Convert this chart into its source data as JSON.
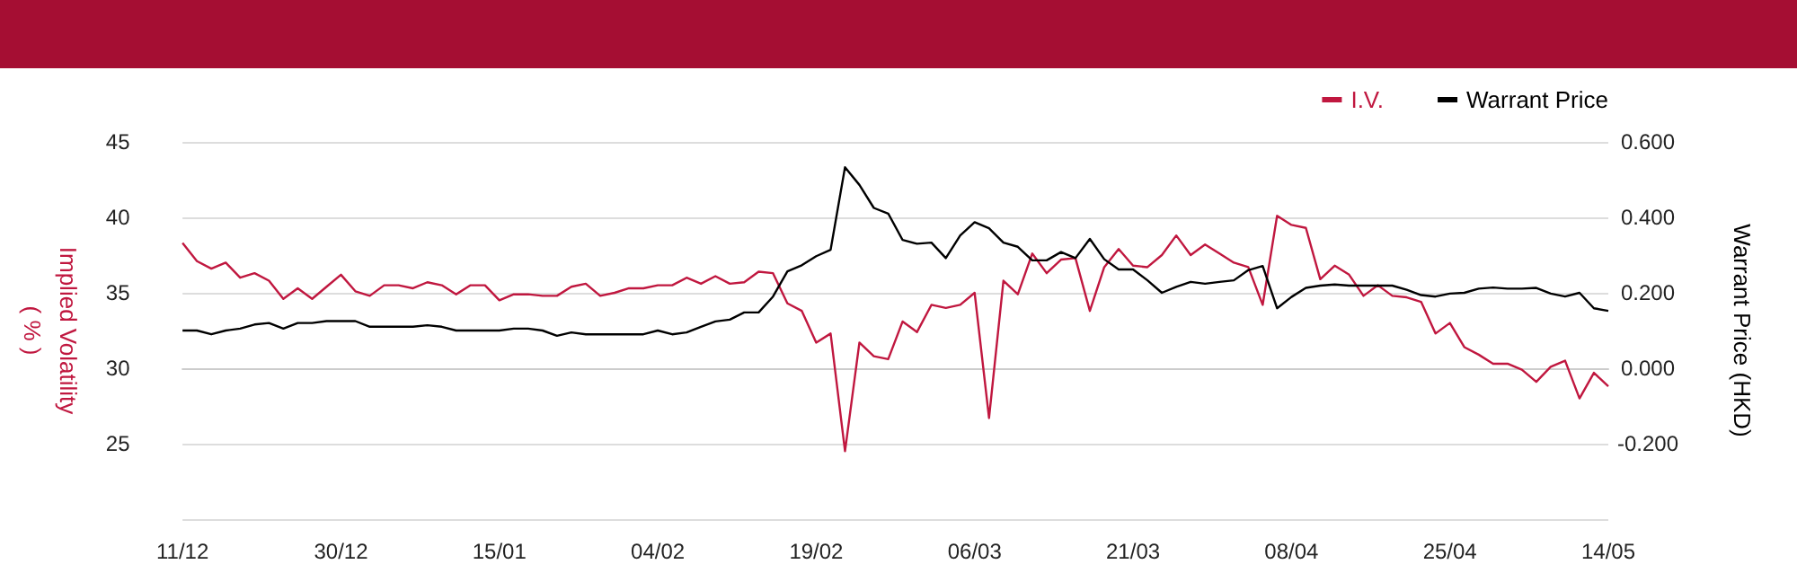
{
  "chart_data": {
    "type": "line",
    "categories": [
      "11/12",
      null,
      null,
      null,
      null,
      null,
      null,
      null,
      null,
      null,
      null,
      "30/12",
      null,
      null,
      null,
      null,
      null,
      null,
      null,
      null,
      null,
      null,
      "15/01",
      null,
      null,
      null,
      null,
      null,
      null,
      null,
      null,
      null,
      null,
      "04/02",
      null,
      null,
      null,
      null,
      null,
      null,
      null,
      null,
      null,
      null,
      "19/02",
      null,
      null,
      null,
      null,
      null,
      null,
      null,
      null,
      null,
      null,
      "06/03",
      null,
      null,
      null,
      null,
      null,
      null,
      null,
      null,
      null,
      null,
      "21/03",
      null,
      null,
      null,
      null,
      null,
      null,
      null,
      null,
      null,
      null,
      "08/04",
      null,
      null,
      null,
      null,
      null,
      null,
      null,
      null,
      null,
      null,
      "25/04",
      null,
      null,
      null,
      null,
      null,
      null,
      null,
      null,
      null,
      null,
      "14/05"
    ],
    "series": [
      {
        "name": "I.V.",
        "color": "#c0173f",
        "axis": "y",
        "values": [
          38.3,
          37.1,
          36.6,
          37.0,
          36.0,
          36.3,
          35.8,
          34.6,
          35.3,
          34.6,
          35.4,
          36.2,
          35.1,
          34.8,
          35.5,
          35.5,
          35.3,
          35.7,
          35.5,
          34.9,
          35.5,
          35.5,
          34.5,
          34.9,
          34.9,
          34.8,
          34.8,
          35.4,
          35.6,
          34.8,
          35.0,
          35.3,
          35.3,
          35.5,
          35.5,
          36.0,
          35.6,
          36.1,
          35.6,
          35.7,
          36.4,
          36.3,
          34.3,
          33.8,
          31.7,
          32.3,
          24.5,
          31.7,
          30.8,
          30.6,
          33.1,
          32.4,
          34.2,
          34.0,
          34.2,
          35.0,
          26.7,
          35.8,
          34.9,
          37.6,
          36.3,
          37.2,
          37.3,
          33.8,
          36.7,
          37.9,
          36.8,
          36.7,
          37.5,
          38.8,
          37.5,
          38.2,
          37.6,
          37.0,
          36.7,
          34.2,
          40.1,
          39.5,
          39.3,
          35.9,
          36.8,
          36.2,
          34.8,
          35.5,
          34.8,
          34.7,
          34.4,
          32.3,
          33.0,
          31.4,
          30.9,
          30.3,
          30.3,
          29.9,
          29.1,
          30.1,
          30.5,
          28.0,
          29.7,
          28.8
        ]
      },
      {
        "name": "Warrant Price",
        "color": "#000000",
        "axis": "y2",
        "values": [
          0.1,
          0.1,
          0.09,
          0.1,
          0.105,
          0.116,
          0.12,
          0.105,
          0.12,
          0.12,
          0.125,
          0.125,
          0.125,
          0.11,
          0.11,
          0.11,
          0.11,
          0.114,
          0.11,
          0.1,
          0.1,
          0.1,
          0.1,
          0.105,
          0.105,
          0.1,
          0.086,
          0.095,
          0.09,
          0.09,
          0.09,
          0.09,
          0.09,
          0.1,
          0.09,
          0.095,
          0.11,
          0.124,
          0.129,
          0.148,
          0.148,
          0.19,
          0.257,
          0.273,
          0.297,
          0.314,
          0.533,
          0.486,
          0.425,
          0.41,
          0.34,
          0.33,
          0.333,
          0.292,
          0.352,
          0.387,
          0.371,
          0.333,
          0.322,
          0.286,
          0.286,
          0.308,
          0.292,
          0.343,
          0.289,
          0.262,
          0.262,
          0.233,
          0.2,
          0.216,
          0.229,
          0.224,
          0.229,
          0.233,
          0.26,
          0.271,
          0.159,
          0.189,
          0.213,
          0.219,
          0.222,
          0.219,
          0.219,
          0.219,
          0.219,
          0.208,
          0.194,
          0.19,
          0.198,
          0.2,
          0.211,
          0.214,
          0.211,
          0.211,
          0.213,
          0.198,
          0.19,
          0.2,
          0.159,
          0.152
        ]
      }
    ],
    "ylabel": "Implied Volatility\n( % )",
    "y2label": "Warrant Price (HKD)",
    "ylim": [
      20,
      45
    ],
    "yticks": [
      {
        "value": 20,
        "label": null
      },
      25,
      30,
      35,
      40,
      45
    ],
    "y2lim": [
      -0.4,
      0.6
    ],
    "y2ticks": [
      {
        "value": -0.4,
        "label": null
      },
      {
        "value": -0.2,
        "label": "-0.200"
      },
      {
        "value": 0,
        "label": "0.000"
      },
      {
        "value": 0.2,
        "label": "0.200"
      },
      {
        "value": 0.4,
        "label": "0.400"
      },
      {
        "value": 0.6,
        "label": "0.600"
      }
    ],
    "grid": "y",
    "legend": "top right",
    "marker": "none",
    "line_style": "solid"
  }
}
